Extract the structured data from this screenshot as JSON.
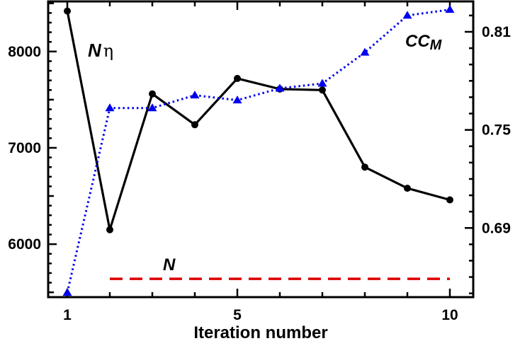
{
  "chart_data": {
    "type": "line",
    "xlabel": "Iteration number",
    "x_ticks": [
      1,
      5,
      10
    ],
    "xlim": [
      0.55,
      10.55
    ],
    "y_left": {
      "ylim": [
        5450,
        8520
      ],
      "ticks": [
        6000,
        7000,
        8000
      ]
    },
    "y_right": {
      "ylim": [
        0.6477,
        0.8286
      ],
      "ticks": [
        "0.69",
        "0.75",
        "0.81"
      ]
    },
    "grid": false,
    "series": [
      {
        "key": "n_eta",
        "axis": "left",
        "color": "#000000",
        "style": "solid",
        "marker": "circle",
        "x": [
          1,
          2,
          3,
          4,
          5,
          6,
          7,
          8,
          9,
          10
        ],
        "y": [
          8420,
          6150,
          7560,
          7240,
          7720,
          7610,
          7600,
          6800,
          6580,
          6460
        ]
      },
      {
        "key": "cc_m",
        "axis": "right",
        "color": "#0000ee",
        "style": "dotted",
        "marker": "triangle",
        "x": [
          1,
          2,
          3,
          4,
          5,
          6,
          7,
          8,
          9,
          10
        ],
        "y": [
          0.6505,
          0.7634,
          0.7634,
          0.7712,
          0.7682,
          0.7754,
          0.7784,
          0.7974,
          0.82,
          0.8236
        ]
      },
      {
        "key": "n",
        "axis": "left",
        "color": "#dd0000",
        "style": "dashed",
        "marker": "none",
        "x": [
          2,
          10
        ],
        "y": [
          5640,
          5640
        ]
      }
    ],
    "annotations": {
      "n_eta": {
        "main": "N",
        "sub": "η"
      },
      "cc_m": {
        "main": "CC",
        "sub": "M"
      },
      "n": {
        "main": "N"
      }
    }
  }
}
